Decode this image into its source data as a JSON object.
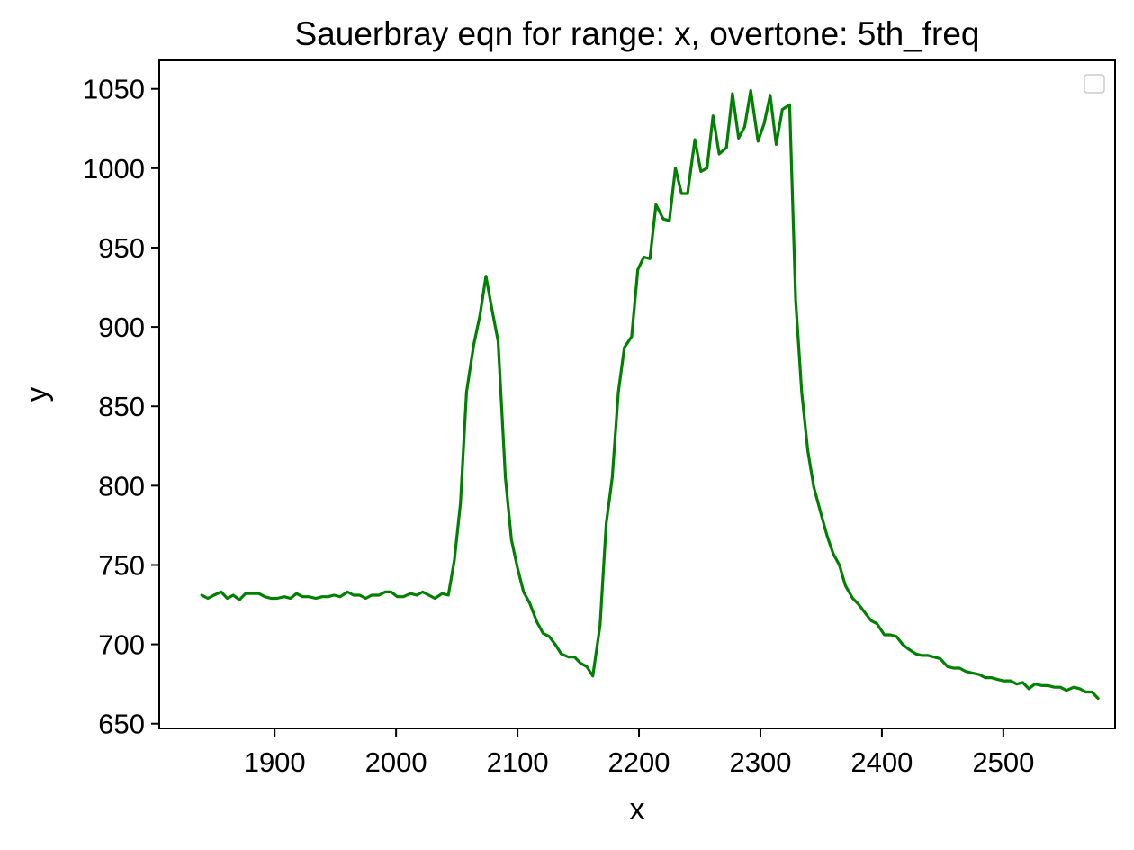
{
  "chart_data": {
    "type": "line",
    "title": "Sauerbray eqn for range: x, overtone: 5th_freq",
    "xlabel": "x",
    "ylabel": "y",
    "xlim": [
      1805,
      2592
    ],
    "ylim": [
      647,
      1068
    ],
    "xticks": [
      1900,
      2000,
      2100,
      2200,
      2300,
      2400,
      2500
    ],
    "xtick_labels": [
      "1900",
      "2000",
      "2100",
      "2200",
      "2300",
      "2400",
      "2500"
    ],
    "yticks": [
      650,
      700,
      750,
      800,
      850,
      900,
      950,
      1000,
      1050
    ],
    "ytick_labels": [
      "650",
      "700",
      "750",
      "800",
      "850",
      "900",
      "950",
      "1000",
      "1050"
    ],
    "grid": false,
    "legend": {
      "placement": "top-right",
      "entries": []
    },
    "series": [
      {
        "color": "#008000",
        "points": [
          [
            1840,
            731
          ],
          [
            1845,
            729
          ],
          [
            1850,
            731
          ],
          [
            1856,
            733
          ],
          [
            1861,
            729
          ],
          [
            1866,
            731
          ],
          [
            1871,
            728
          ],
          [
            1876,
            732
          ],
          [
            1882,
            732
          ],
          [
            1887,
            732
          ],
          [
            1892,
            730
          ],
          [
            1897,
            729
          ],
          [
            1902,
            729
          ],
          [
            1908,
            730
          ],
          [
            1913,
            729
          ],
          [
            1918,
            732
          ],
          [
            1923,
            730
          ],
          [
            1928,
            730
          ],
          [
            1934,
            729
          ],
          [
            1939,
            730
          ],
          [
            1944,
            730
          ],
          [
            1949,
            731
          ],
          [
            1954,
            730
          ],
          [
            1960,
            733
          ],
          [
            1965,
            731
          ],
          [
            1970,
            731
          ],
          [
            1975,
            729
          ],
          [
            1980,
            731
          ],
          [
            1986,
            731
          ],
          [
            1991,
            733
          ],
          [
            1996,
            733
          ],
          [
            2001,
            730
          ],
          [
            2006,
            730
          ],
          [
            2012,
            732
          ],
          [
            2017,
            731
          ],
          [
            2022,
            733
          ],
          [
            2027,
            731
          ],
          [
            2032,
            729
          ],
          [
            2038,
            732
          ],
          [
            2043,
            731
          ],
          [
            2048,
            753
          ],
          [
            2053,
            789
          ],
          [
            2058,
            859
          ],
          [
            2064,
            889
          ],
          [
            2069,
            907
          ],
          [
            2074,
            932
          ],
          [
            2079,
            911
          ],
          [
            2084,
            891
          ],
          [
            2090,
            805
          ],
          [
            2095,
            766
          ],
          [
            2100,
            748
          ],
          [
            2105,
            733
          ],
          [
            2110,
            726
          ],
          [
            2116,
            714
          ],
          [
            2121,
            707
          ],
          [
            2126,
            705
          ],
          [
            2131,
            700
          ],
          [
            2136,
            694
          ],
          [
            2142,
            692
          ],
          [
            2147,
            692
          ],
          [
            2152,
            688
          ],
          [
            2157,
            686
          ],
          [
            2162,
            680
          ],
          [
            2168,
            712
          ],
          [
            2173,
            776
          ],
          [
            2178,
            805
          ],
          [
            2183,
            859
          ],
          [
            2188,
            887
          ],
          [
            2194,
            894
          ],
          [
            2199,
            936
          ],
          [
            2204,
            944
          ],
          [
            2209,
            943
          ],
          [
            2214,
            977
          ],
          [
            2220,
            968
          ],
          [
            2225,
            967
          ],
          [
            2230,
            1000
          ],
          [
            2235,
            984
          ],
          [
            2240,
            984
          ],
          [
            2246,
            1018
          ],
          [
            2251,
            998
          ],
          [
            2256,
            1000
          ],
          [
            2261,
            1033
          ],
          [
            2266,
            1009
          ],
          [
            2272,
            1013
          ],
          [
            2277,
            1047
          ],
          [
            2282,
            1019
          ],
          [
            2287,
            1026
          ],
          [
            2292,
            1049
          ],
          [
            2298,
            1017
          ],
          [
            2303,
            1028
          ],
          [
            2308,
            1046
          ],
          [
            2313,
            1015
          ],
          [
            2318,
            1037
          ],
          [
            2324,
            1040
          ],
          [
            2329,
            917
          ],
          [
            2334,
            859
          ],
          [
            2339,
            822
          ],
          [
            2344,
            799
          ],
          [
            2350,
            782
          ],
          [
            2355,
            768
          ],
          [
            2360,
            757
          ],
          [
            2365,
            750
          ],
          [
            2370,
            737
          ],
          [
            2376,
            729
          ],
          [
            2381,
            725
          ],
          [
            2386,
            720
          ],
          [
            2391,
            715
          ],
          [
            2396,
            713
          ],
          [
            2402,
            706
          ],
          [
            2407,
            706
          ],
          [
            2412,
            705
          ],
          [
            2417,
            700
          ],
          [
            2422,
            697
          ],
          [
            2428,
            694
          ],
          [
            2433,
            693
          ],
          [
            2438,
            693
          ],
          [
            2443,
            692
          ],
          [
            2448,
            691
          ],
          [
            2454,
            686
          ],
          [
            2459,
            685
          ],
          [
            2464,
            685
          ],
          [
            2469,
            683
          ],
          [
            2474,
            682
          ],
          [
            2480,
            681
          ],
          [
            2485,
            679
          ],
          [
            2490,
            679
          ],
          [
            2495,
            678
          ],
          [
            2500,
            677
          ],
          [
            2506,
            677
          ],
          [
            2511,
            675
          ],
          [
            2516,
            676
          ],
          [
            2521,
            672
          ],
          [
            2526,
            675
          ],
          [
            2532,
            674
          ],
          [
            2537,
            674
          ],
          [
            2542,
            673
          ],
          [
            2547,
            673
          ],
          [
            2552,
            671
          ],
          [
            2558,
            673
          ],
          [
            2563,
            672
          ],
          [
            2568,
            670
          ],
          [
            2573,
            670
          ],
          [
            2578,
            666
          ]
        ]
      }
    ]
  }
}
